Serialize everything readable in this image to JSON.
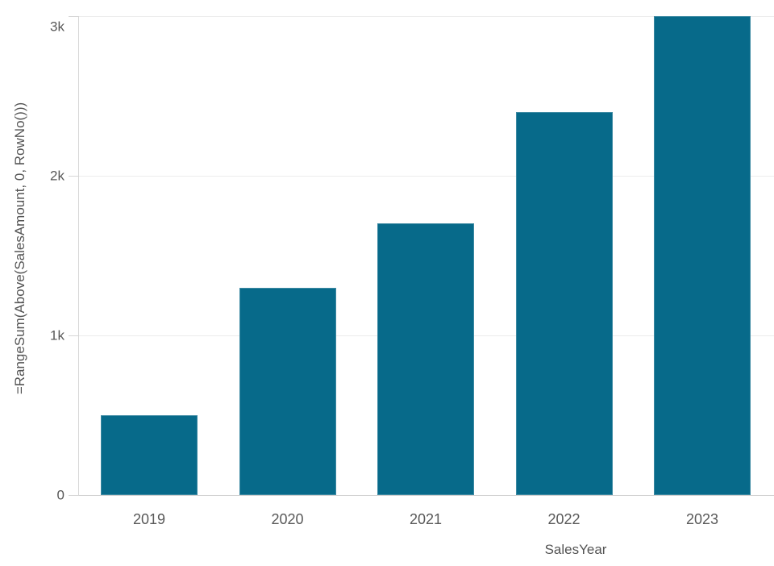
{
  "chart_data": {
    "type": "bar",
    "title": "",
    "categories": [
      "2019",
      "2020",
      "2021",
      "2022",
      "2023"
    ],
    "values": [
      500,
      1300,
      1700,
      2400,
      3000
    ],
    "xlabel": "SalesYear",
    "ylabel": "=RangeSum(Above(SalesAmount, 0, RowNo()))",
    "ylim": [
      0,
      3000
    ],
    "yticks": [
      {
        "value": 0,
        "label": "0"
      },
      {
        "value": 1000,
        "label": "1k"
      },
      {
        "value": 2000,
        "label": "2k"
      },
      {
        "value": 3000,
        "label": "3k"
      }
    ],
    "grid": true,
    "legend": "none",
    "colors": {
      "bar": "#076a8a",
      "gridline": "#ececec",
      "axis_line": "#d6d6d6",
      "baseline": "#d0d0d0",
      "tick_label": "#595959",
      "axis_title": "#545454",
      "background": "#ffffff"
    }
  }
}
